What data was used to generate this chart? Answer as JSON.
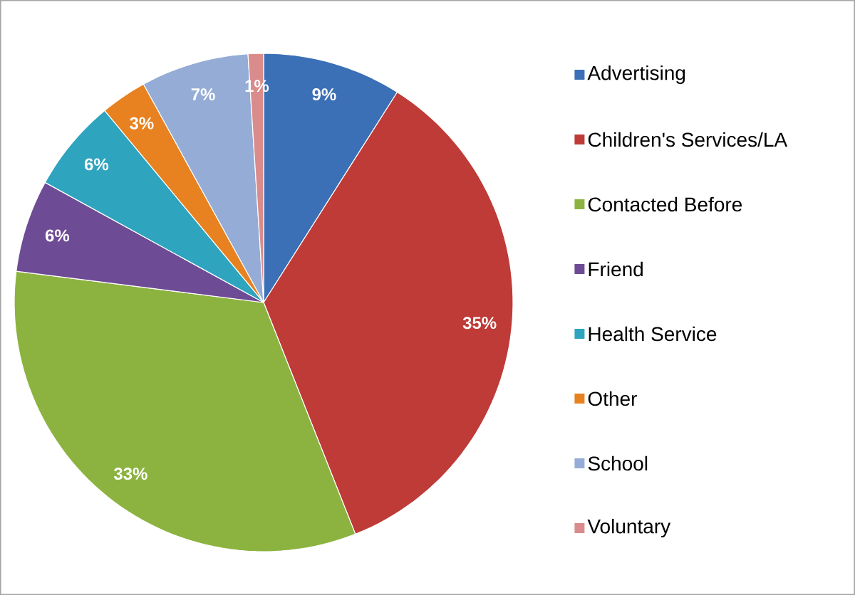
{
  "chart_data": {
    "type": "pie",
    "categories": [
      "Advertising",
      "Children's Services/LA",
      "Contacted Before",
      "Friend",
      "Health Service",
      "Other",
      "School",
      "Voluntary"
    ],
    "values": [
      9,
      35,
      33,
      6,
      6,
      3,
      7,
      1
    ],
    "value_labels": [
      "9%",
      "35%",
      "33%",
      "6%",
      "6%",
      "3%",
      "7%",
      "1%"
    ],
    "colors": [
      "#3b6fb6",
      "#be3b37",
      "#8cb340",
      "#6e4b95",
      "#2ea4bf",
      "#e8811f",
      "#95acd6",
      "#d98c8b"
    ],
    "legend": "right"
  }
}
